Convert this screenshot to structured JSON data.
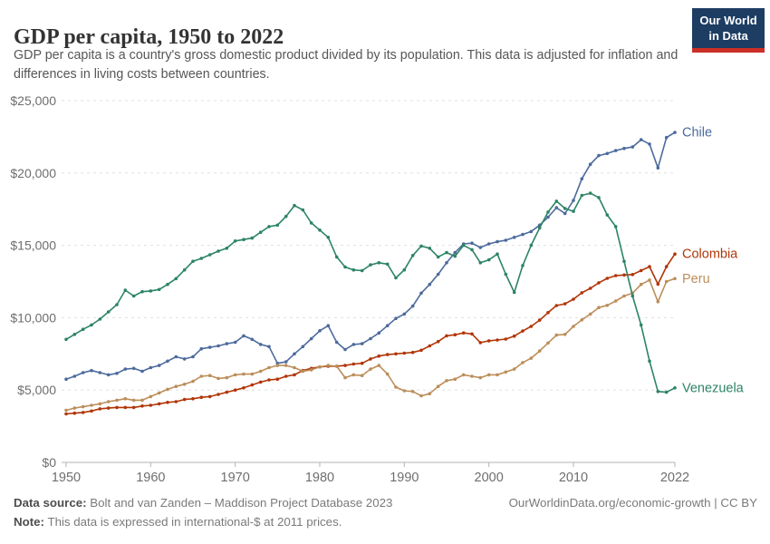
{
  "header": {
    "title": "GDP per capita, 1950 to 2022",
    "subtitle": "GDP per capita is a country's gross domestic product divided by its population. This data is adjusted for inflation and differences in living costs between countries.",
    "logo": {
      "line1": "Our World",
      "line2": "in Data"
    }
  },
  "chart_data": {
    "type": "line",
    "title": "GDP per capita, 1950 to 2022",
    "xlabel": "",
    "ylabel": "",
    "unit": "international-$ at 2011 prices",
    "xlim": [
      1950,
      2022
    ],
    "ylim": [
      0,
      25000
    ],
    "grid": "horizontal-dashed",
    "legend_position": "line-end-labels",
    "x_ticks": [
      1950,
      1960,
      1970,
      1980,
      1990,
      2000,
      2010,
      2022
    ],
    "y_ticks": [
      {
        "value": 0,
        "label": "$0"
      },
      {
        "value": 5000,
        "label": "$5,000"
      },
      {
        "value": 10000,
        "label": "$10,000"
      },
      {
        "value": 15000,
        "label": "$15,000"
      },
      {
        "value": 20000,
        "label": "$20,000"
      },
      {
        "value": 25000,
        "label": "$25,000"
      }
    ],
    "x": [
      1950,
      1951,
      1952,
      1953,
      1954,
      1955,
      1956,
      1957,
      1958,
      1959,
      1960,
      1961,
      1962,
      1963,
      1964,
      1965,
      1966,
      1967,
      1968,
      1969,
      1970,
      1971,
      1972,
      1973,
      1974,
      1975,
      1976,
      1977,
      1978,
      1979,
      1980,
      1981,
      1982,
      1983,
      1984,
      1985,
      1986,
      1987,
      1988,
      1989,
      1990,
      1991,
      1992,
      1993,
      1994,
      1995,
      1996,
      1997,
      1998,
      1999,
      2000,
      2001,
      2002,
      2003,
      2004,
      2005,
      2006,
      2007,
      2008,
      2009,
      2010,
      2011,
      2012,
      2013,
      2014,
      2015,
      2016,
      2017,
      2018,
      2019,
      2020,
      2021,
      2022
    ],
    "series": [
      {
        "name": "Chile",
        "color": "#4C6A9C",
        "values": [
          5750,
          5950,
          6200,
          6350,
          6200,
          6050,
          6150,
          6450,
          6500,
          6300,
          6550,
          6700,
          7000,
          7300,
          7150,
          7300,
          7850,
          7950,
          8050,
          8200,
          8300,
          8750,
          8500,
          8150,
          8000,
          6850,
          6950,
          7500,
          8000,
          8550,
          9100,
          9450,
          8300,
          7800,
          8150,
          8200,
          8550,
          8950,
          9450,
          9950,
          10250,
          10800,
          11700,
          12300,
          13000,
          13800,
          14500,
          15100,
          15150,
          14850,
          15100,
          15250,
          15350,
          15550,
          15750,
          15950,
          16400,
          16950,
          17600,
          17200,
          18100,
          19600,
          20600,
          21200,
          21350,
          21550,
          21700,
          21800,
          22300,
          22000,
          20350,
          22450,
          22800
        ]
      },
      {
        "name": "Colombia",
        "color": "#B13507",
        "values": [
          3350,
          3400,
          3450,
          3550,
          3700,
          3750,
          3800,
          3800,
          3800,
          3900,
          3950,
          4050,
          4150,
          4200,
          4350,
          4400,
          4500,
          4550,
          4700,
          4850,
          5000,
          5150,
          5350,
          5550,
          5700,
          5750,
          5950,
          6050,
          6350,
          6500,
          6600,
          6650,
          6650,
          6700,
          6800,
          6850,
          7150,
          7350,
          7450,
          7500,
          7550,
          7600,
          7750,
          8050,
          8350,
          8750,
          8820,
          8950,
          8880,
          8280,
          8400,
          8460,
          8520,
          8730,
          9080,
          9400,
          9830,
          10350,
          10840,
          10960,
          11280,
          11720,
          12030,
          12410,
          12720,
          12910,
          12950,
          12980,
          13260,
          13530,
          12320,
          13530,
          14400
        ]
      },
      {
        "name": "Peru",
        "color": "#BC8E5A",
        "values": [
          3600,
          3750,
          3850,
          3950,
          4050,
          4200,
          4300,
          4400,
          4300,
          4300,
          4550,
          4800,
          5050,
          5250,
          5400,
          5600,
          5950,
          6000,
          5800,
          5850,
          6050,
          6100,
          6100,
          6300,
          6550,
          6700,
          6700,
          6550,
          6300,
          6400,
          6600,
          6700,
          6650,
          5850,
          6050,
          6000,
          6450,
          6700,
          6100,
          5200,
          4950,
          4900,
          4600,
          4750,
          5250,
          5650,
          5750,
          6050,
          5950,
          5850,
          6050,
          6050,
          6250,
          6450,
          6900,
          7200,
          7700,
          8250,
          8800,
          8850,
          9400,
          9850,
          10250,
          10700,
          10850,
          11150,
          11500,
          11700,
          12300,
          12600,
          11100,
          12500,
          12700
        ]
      },
      {
        "name": "Venezuela",
        "color": "#2C8465",
        "values": [
          8500,
          8850,
          9200,
          9500,
          9900,
          10400,
          10900,
          11900,
          11500,
          11800,
          11850,
          11950,
          12300,
          12700,
          13300,
          13900,
          14100,
          14350,
          14600,
          14800,
          15300,
          15400,
          15500,
          15900,
          16300,
          16400,
          17000,
          17750,
          17450,
          16550,
          16050,
          15550,
          14200,
          13500,
          13300,
          13250,
          13650,
          13800,
          13700,
          12750,
          13300,
          14300,
          14950,
          14800,
          14200,
          14500,
          14250,
          15000,
          14700,
          13800,
          14000,
          14400,
          13000,
          11750,
          13600,
          15000,
          16200,
          17300,
          18050,
          17550,
          17350,
          18450,
          18600,
          18300,
          17100,
          16300,
          13900,
          11500,
          9500,
          7000,
          4900,
          4850,
          5150
        ]
      }
    ]
  },
  "footer": {
    "datasource_label": "Data source:",
    "datasource": "Bolt and van Zanden – Maddison Project Database 2023",
    "note_label": "Note:",
    "note": "This data is expressed in international-$ at 2011 prices.",
    "link": "OurWorldinData.org/economic-growth | CC BY"
  }
}
